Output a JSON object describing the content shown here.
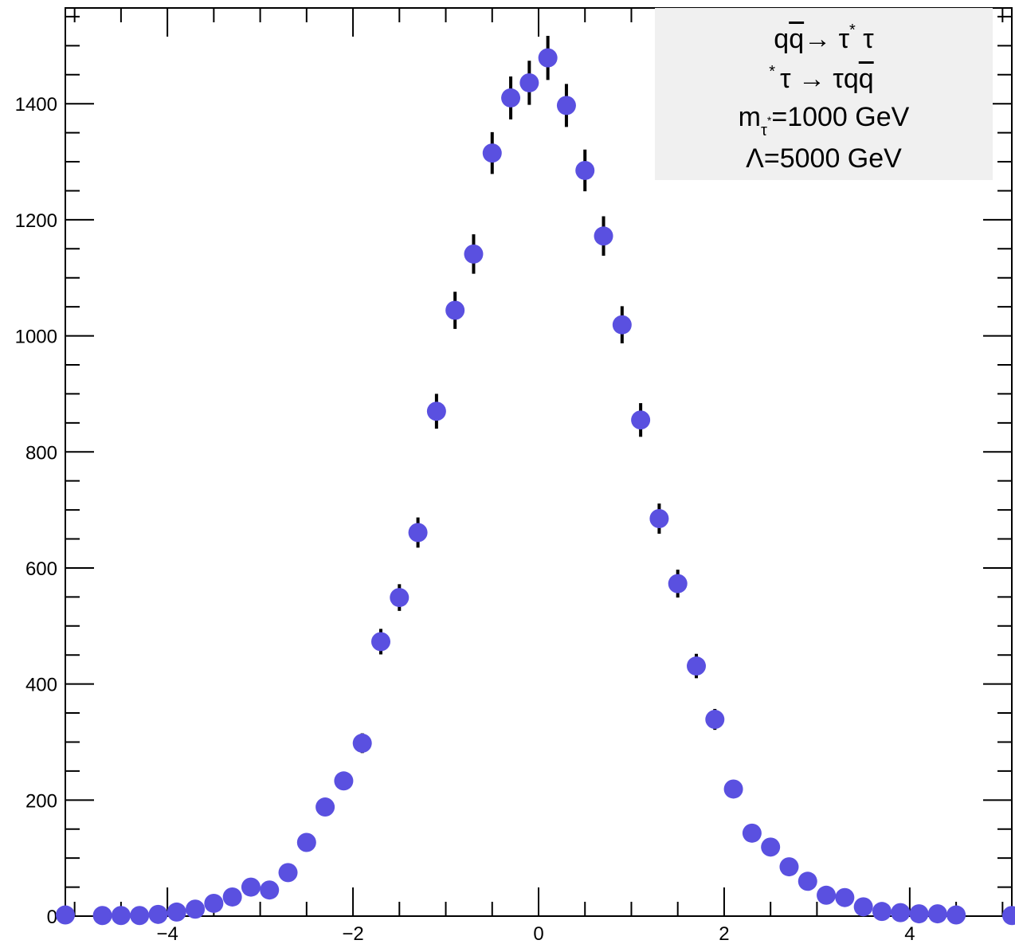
{
  "chart_data": {
    "type": "scatter",
    "title": "",
    "xlabel": "",
    "ylabel": "",
    "xlim": [
      -5.1,
      5.1
    ],
    "ylim": [
      0,
      1565
    ],
    "x_ticks": [
      -4,
      -2,
      0,
      2,
      4
    ],
    "x_tick_labels": [
      "−4",
      "−2",
      "0",
      "2",
      "4"
    ],
    "y_ticks": [
      0,
      200,
      400,
      600,
      800,
      1000,
      1200,
      1400
    ],
    "y_tick_labels": [
      "0",
      "200",
      "400",
      "600",
      "800",
      "1000",
      "1200",
      "1400"
    ],
    "grid": false,
    "marker_color": "#5a50e0",
    "errorbar_color": "#000000",
    "series": [
      {
        "points": [
          {
            "x": -5.1,
            "y": 2,
            "err": 1
          },
          {
            "x": -4.7,
            "y": 1,
            "err": 1
          },
          {
            "x": -4.5,
            "y": 1,
            "err": 1
          },
          {
            "x": -4.3,
            "y": 1,
            "err": 1
          },
          {
            "x": -4.1,
            "y": 3,
            "err": 2
          },
          {
            "x": -3.9,
            "y": 7,
            "err": 3
          },
          {
            "x": -3.7,
            "y": 12,
            "err": 3
          },
          {
            "x": -3.5,
            "y": 22,
            "err": 5
          },
          {
            "x": -3.3,
            "y": 33,
            "err": 6
          },
          {
            "x": -3.1,
            "y": 50,
            "err": 7
          },
          {
            "x": -2.9,
            "y": 45,
            "err": 7
          },
          {
            "x": -2.7,
            "y": 75,
            "err": 9
          },
          {
            "x": -2.5,
            "y": 127,
            "err": 11
          },
          {
            "x": -2.3,
            "y": 188,
            "err": 14
          },
          {
            "x": -2.1,
            "y": 233,
            "err": 15
          },
          {
            "x": -1.9,
            "y": 298,
            "err": 17
          },
          {
            "x": -1.7,
            "y": 473,
            "err": 22
          },
          {
            "x": -1.5,
            "y": 549,
            "err": 23
          },
          {
            "x": -1.3,
            "y": 661,
            "err": 26
          },
          {
            "x": -1.1,
            "y": 870,
            "err": 30
          },
          {
            "x": -0.9,
            "y": 1044,
            "err": 32
          },
          {
            "x": -0.7,
            "y": 1141,
            "err": 34
          },
          {
            "x": -0.5,
            "y": 1315,
            "err": 36
          },
          {
            "x": -0.3,
            "y": 1410,
            "err": 37
          },
          {
            "x": -0.1,
            "y": 1436,
            "err": 38
          },
          {
            "x": 0.1,
            "y": 1479,
            "err": 38
          },
          {
            "x": 0.3,
            "y": 1397,
            "err": 37
          },
          {
            "x": 0.5,
            "y": 1285,
            "err": 36
          },
          {
            "x": 0.7,
            "y": 1172,
            "err": 34
          },
          {
            "x": 0.9,
            "y": 1019,
            "err": 32
          },
          {
            "x": 1.1,
            "y": 855,
            "err": 29
          },
          {
            "x": 1.3,
            "y": 685,
            "err": 26
          },
          {
            "x": 1.5,
            "y": 573,
            "err": 24
          },
          {
            "x": 1.7,
            "y": 431,
            "err": 21
          },
          {
            "x": 1.9,
            "y": 339,
            "err": 18
          },
          {
            "x": 2.1,
            "y": 219,
            "err": 15
          },
          {
            "x": 2.3,
            "y": 143,
            "err": 12
          },
          {
            "x": 2.5,
            "y": 119,
            "err": 11
          },
          {
            "x": 2.7,
            "y": 85,
            "err": 9
          },
          {
            "x": 2.9,
            "y": 60,
            "err": 8
          },
          {
            "x": 3.1,
            "y": 36,
            "err": 6
          },
          {
            "x": 3.3,
            "y": 32,
            "err": 6
          },
          {
            "x": 3.5,
            "y": 16,
            "err": 4
          },
          {
            "x": 3.7,
            "y": 8,
            "err": 3
          },
          {
            "x": 3.9,
            "y": 6,
            "err": 2
          },
          {
            "x": 4.1,
            "y": 4,
            "err": 2
          },
          {
            "x": 4.3,
            "y": 4,
            "err": 2
          },
          {
            "x": 4.5,
            "y": 2,
            "err": 1
          },
          {
            "x": 5.1,
            "y": 1,
            "err": 1
          }
        ]
      }
    ],
    "legend": {
      "placement": "top-right",
      "background": "#f0f0f0",
      "line1": {
        "q": "q",
        "qbar": "q",
        "arrow": "→ τ",
        "star": "*",
        "tau": "τ"
      },
      "line2": {
        "star_sub": "*",
        "text": "τ → τq",
        "qbar": "q"
      },
      "line3": {
        "m": "m",
        "sub": "τ",
        "sup": "*",
        "value": "=1000 GeV"
      },
      "line4": {
        "text": "Λ=5000 GeV"
      }
    }
  }
}
